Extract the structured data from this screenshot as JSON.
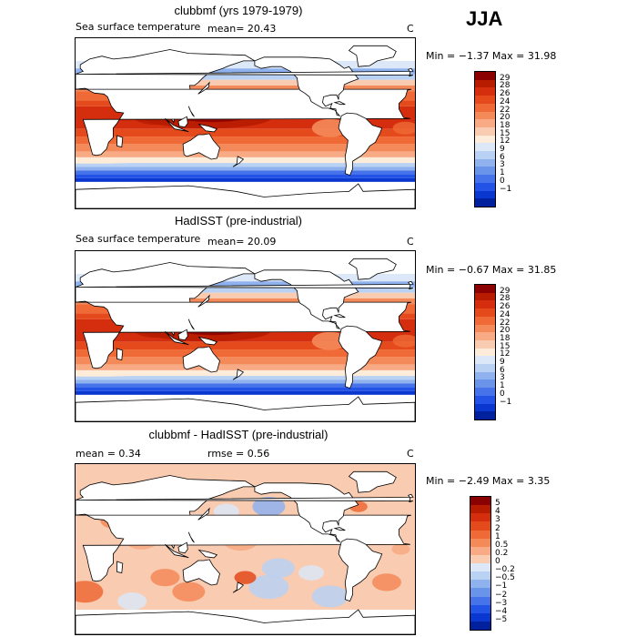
{
  "season": "JJA",
  "panels": [
    {
      "title": "clubbmf (yrs 1979-1979)",
      "label_left": "Sea surface temperature",
      "mean_text": "mean=   20.43",
      "unit": "C",
      "range_text": "Min =  −1.37 Max =   31.98",
      "type": "sst",
      "colors": [
        "#8b0000",
        "#b71c00",
        "#d42e0e",
        "#e44a1c",
        "#ef6a36",
        "#f48a5a",
        "#f7aa84",
        "#f9cbb0",
        "#fdecd9",
        "#dce8f7",
        "#b9d1f3",
        "#8fb2ee",
        "#6a93ea",
        "#4672ea",
        "#2253e6",
        "#0a37cf",
        "#00209e"
      ],
      "ticks": [
        "29",
        "28",
        "26",
        "24",
        "22",
        "20",
        "18",
        "15",
        "12",
        "9",
        "6",
        "3",
        "1",
        "0",
        "−1"
      ]
    },
    {
      "title": "HadISST (pre-industrial)",
      "label_left": "Sea surface temperature",
      "mean_text": "mean=   20.09",
      "unit": "C",
      "range_text": "Min =  −0.67 Max =   31.85",
      "type": "sst",
      "colors": [
        "#8b0000",
        "#b71c00",
        "#d42e0e",
        "#e44a1c",
        "#ef6a36",
        "#f48a5a",
        "#f7aa84",
        "#f9cbb0",
        "#fdecd9",
        "#dce8f7",
        "#b9d1f3",
        "#8fb2ee",
        "#6a93ea",
        "#4672ea",
        "#2253e6",
        "#0a37cf",
        "#00209e"
      ],
      "ticks": [
        "29",
        "28",
        "26",
        "24",
        "22",
        "20",
        "18",
        "15",
        "12",
        "9",
        "6",
        "3",
        "1",
        "0",
        "−1"
      ]
    },
    {
      "title": "clubbmf - HadISST (pre-industrial)",
      "label_left": "mean =    0.34",
      "mean_text": "rmse =    0.56",
      "unit": "C",
      "range_text": "Min =  −2.49 Max =    3.35",
      "type": "diff",
      "colors": [
        "#8b0000",
        "#b71c00",
        "#d42e0e",
        "#e44a1c",
        "#ef6a36",
        "#f48a5a",
        "#f7aa84",
        "#f9cbb0",
        "#dce8f7",
        "#b9d1f3",
        "#8fb2ee",
        "#6a93ea",
        "#4672ea",
        "#2253e6",
        "#0a37cf",
        "#00209e"
      ],
      "ticks": [
        "5",
        "4",
        "3",
        "2",
        "1",
        "0.5",
        "0.2",
        "0",
        "−0.2",
        "−0.5",
        "−1",
        "−2",
        "−3",
        "−4",
        "−5"
      ]
    }
  ]
}
